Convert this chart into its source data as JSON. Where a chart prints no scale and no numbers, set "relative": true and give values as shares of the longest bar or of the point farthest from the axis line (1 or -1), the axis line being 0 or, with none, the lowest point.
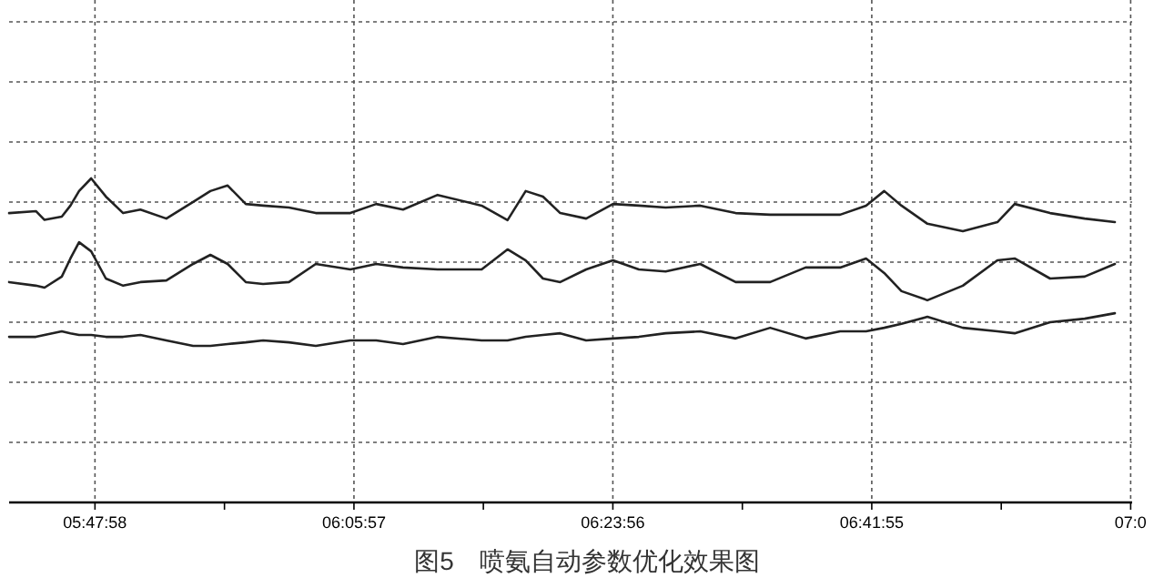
{
  "chart_data": {
    "type": "line",
    "title": "图5　喷氨自动参数优化效果图",
    "relative": true,
    "grid": true,
    "marker": "none",
    "line_style": "solid",
    "xlim": [
      5.7,
      7.0
    ],
    "xticks": [
      {
        "value": 5.7994,
        "label": "05:47:58"
      },
      {
        "value": 5.9493,
        "label": null
      },
      {
        "value": 6.0992,
        "label": "06:05:57"
      },
      {
        "value": 6.249,
        "label": null
      },
      {
        "value": 6.3989,
        "label": "06:23:56"
      },
      {
        "value": 6.5488,
        "label": null
      },
      {
        "value": 6.6986,
        "label": "06:41:55"
      },
      {
        "value": 6.8485,
        "label": null
      },
      {
        "value": 6.9983,
        "label": "07:0"
      }
    ],
    "x": [
      5.7,
      5.731,
      5.741,
      5.761,
      5.771,
      5.781,
      5.795,
      5.812,
      5.832,
      5.852,
      5.882,
      5.913,
      5.933,
      5.953,
      5.974,
      5.994,
      6.024,
      6.055,
      6.095,
      6.125,
      6.156,
      6.196,
      6.247,
      6.277,
      6.298,
      6.318,
      6.338,
      6.368,
      6.399,
      6.429,
      6.46,
      6.5,
      6.541,
      6.581,
      6.622,
      6.662,
      6.692,
      6.713,
      6.733,
      6.763,
      6.804,
      6.844,
      6.864,
      6.905,
      6.945,
      6.98
    ],
    "series": [
      {
        "color": "#222222",
        "values": [
          0.893,
          0.899,
          0.872,
          0.882,
          0.916,
          0.961,
          1.0,
          0.944,
          0.893,
          0.904,
          0.876,
          0.927,
          0.961,
          0.978,
          0.921,
          0.916,
          0.91,
          0.893,
          0.893,
          0.921,
          0.904,
          0.949,
          0.916,
          0.871,
          0.961,
          0.944,
          0.893,
          0.876,
          0.921,
          0.916,
          0.91,
          0.916,
          0.893,
          0.888,
          0.888,
          0.888,
          0.916,
          0.961,
          0.916,
          0.86,
          0.837,
          0.865,
          0.921,
          0.893,
          0.876,
          0.865
        ]
      },
      {
        "color": "#222222",
        "values": [
          0.68,
          0.669,
          0.663,
          0.697,
          0.753,
          0.803,
          0.775,
          0.691,
          0.669,
          0.68,
          0.685,
          0.736,
          0.764,
          0.736,
          0.68,
          0.674,
          0.68,
          0.736,
          0.719,
          0.736,
          0.725,
          0.719,
          0.719,
          0.781,
          0.747,
          0.691,
          0.68,
          0.719,
          0.747,
          0.719,
          0.713,
          0.736,
          0.68,
          0.68,
          0.725,
          0.725,
          0.753,
          0.708,
          0.652,
          0.624,
          0.669,
          0.747,
          0.753,
          0.691,
          0.697,
          0.736
        ]
      },
      {
        "color": "#222222",
        "values": [
          0.511,
          0.511,
          0.517,
          0.528,
          0.522,
          0.517,
          0.517,
          0.511,
          0.511,
          0.517,
          0.5,
          0.483,
          0.483,
          0.489,
          0.494,
          0.5,
          0.494,
          0.483,
          0.5,
          0.5,
          0.489,
          0.511,
          0.5,
          0.5,
          0.511,
          0.517,
          0.522,
          0.5,
          0.506,
          0.511,
          0.522,
          0.528,
          0.506,
          0.539,
          0.506,
          0.528,
          0.528,
          0.539,
          0.551,
          0.573,
          0.539,
          0.528,
          0.522,
          0.556,
          0.567,
          0.584
        ]
      }
    ]
  }
}
